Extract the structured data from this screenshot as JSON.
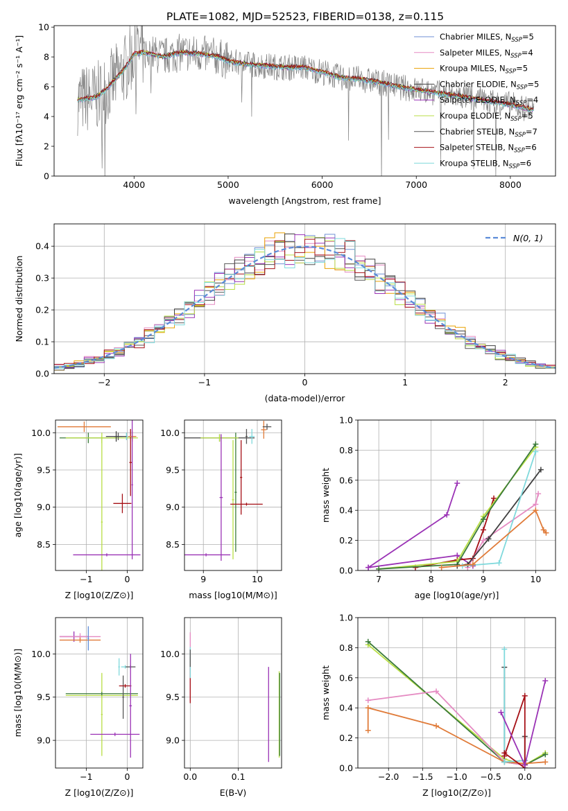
{
  "figure": {
    "title": "PLATE=1082, MJD=52523, FIBERID=0138, z=0.115"
  },
  "chart_data": [
    {
      "id": "spectrum",
      "type": "line",
      "title": "PLATE=1082, MJD=52523, FIBERID=0138, z=0.115",
      "xlabel": "wavelength [Angstrom, rest frame]",
      "ylabel": "Flux [fλ10⁻¹⁷ erg cm⁻² s⁻¹ A⁻¹]",
      "xlim": [
        3150,
        8480
      ],
      "ylim": [
        0,
        10.1
      ],
      "xticks": [
        4000,
        5000,
        6000,
        7000,
        8000
      ],
      "yticks": [
        0,
        2,
        4,
        6,
        8,
        10
      ],
      "grid": false,
      "legend_position": "top-right",
      "data_color": "#808080",
      "data_curve": {
        "x": [
          3400,
          3500,
          3600,
          3700,
          3800,
          3900,
          4000,
          4100,
          4200,
          4300,
          4500,
          4700,
          4900,
          5000,
          5200,
          5400,
          5600,
          5800,
          6000,
          6200,
          6400,
          6600,
          6800,
          7000,
          7200,
          7400,
          7600,
          7800,
          8000,
          8200
        ],
        "y": [
          5.1,
          5.2,
          5.3,
          5.8,
          6.5,
          7.2,
          8.2,
          8.3,
          8.2,
          8.0,
          8.3,
          8.2,
          8.0,
          7.7,
          7.5,
          7.4,
          7.3,
          7.3,
          7.0,
          6.6,
          6.5,
          6.3,
          6.0,
          5.8,
          5.6,
          5.4,
          5.2,
          5.0,
          4.8,
          4.5
        ]
      },
      "series": [
        {
          "name": "Chabrier MILES, N_SSP=5",
          "color": "#6f8fd4",
          "offset": 0.0
        },
        {
          "name": "Salpeter MILES, N_SSP=4",
          "color": "#e58ac2",
          "offset": 0.05
        },
        {
          "name": "Kroupa MILES, N_SSP=5",
          "color": "#e9a100",
          "offset": -0.03
        },
        {
          "name": "Chabrier ELODIE, N_SSP=5",
          "color": "#3f3f3f",
          "offset": 0.08
        },
        {
          "name": "Salpeter ELODIE, N_SSP=4",
          "color": "#9a32b5",
          "offset": -0.06
        },
        {
          "name": "Kroupa ELODIE, N_SSP=5",
          "color": "#b8de44",
          "offset": 0.03
        },
        {
          "name": "Chabrier STELIB, N_SSP=7",
          "color": "#555555",
          "offset": -0.02
        },
        {
          "name": "Salpeter STELIB, N_SSP=6",
          "color": "#a50f15",
          "offset": 0.06
        },
        {
          "name": "Kroupa STELIB, N_SSP=6",
          "color": "#7fd9dc",
          "offset": -0.08
        }
      ],
      "legend_labels": [
        {
          "prefix": "Chabrier MILES, N",
          "sub": "SSP",
          "suffix": "=5"
        },
        {
          "prefix": "Salpeter MILES, N",
          "sub": "SSP",
          "suffix": "=4"
        },
        {
          "prefix": "Kroupa MILES, N",
          "sub": "SSP",
          "suffix": "=5"
        },
        {
          "prefix": "Chabrier ELODIE, N",
          "sub": "SSP",
          "suffix": "=5"
        },
        {
          "prefix": "Salpeter ELODIE, N",
          "sub": "SSP",
          "suffix": "=4"
        },
        {
          "prefix": "Kroupa ELODIE, N",
          "sub": "SSP",
          "suffix": "=5"
        },
        {
          "prefix": "Chabrier STELIB, N",
          "sub": "SSP",
          "suffix": "=7"
        },
        {
          "prefix": "Salpeter STELIB, N",
          "sub": "SSP",
          "suffix": "=6"
        },
        {
          "prefix": "Kroupa STELIB, N",
          "sub": "SSP",
          "suffix": "=6"
        }
      ]
    },
    {
      "id": "residuals",
      "type": "line",
      "xlabel": "(data-model)/error",
      "ylabel": "Normed distribution",
      "xlim": [
        -2.5,
        2.5
      ],
      "ylim": [
        0,
        0.47
      ],
      "xticks": [
        -2,
        -1,
        0,
        1,
        2
      ],
      "yticks": [
        0.0,
        0.1,
        0.2,
        0.3,
        0.4
      ],
      "grid": true,
      "legend_position": "top-right",
      "legend_label": "N(0, 1)",
      "gaussian_color": "#5b8bd8",
      "histogram_bin_width": 0.1,
      "histogram_colors": [
        "#6f8fd4",
        "#e58ac2",
        "#e9a100",
        "#3f3f3f",
        "#9a32b5",
        "#b8de44",
        "#555555",
        "#a50f15",
        "#7fd9dc"
      ]
    },
    {
      "id": "age-vs-Z",
      "type": "scatter",
      "xlabel": "Z [log10(Z/Z⊙)]",
      "ylabel": "age [log10(age/yr)]",
      "xlim": [
        -1.75,
        0.38
      ],
      "ylim": [
        8.15,
        10.17
      ],
      "xticks": [
        -1,
        0
      ],
      "yticks": [
        8.5,
        9.0,
        9.5,
        10.0
      ],
      "grid": true,
      "points": [
        {
          "x": -1.05,
          "xerr": 0.65,
          "y": 10.08,
          "yerr": 0.07,
          "color": "#e07b39"
        },
        {
          "x": -0.95,
          "xerr": 0.7,
          "y": 9.93,
          "yerr": 0.07,
          "color": "#3a7a3a"
        },
        {
          "x": -0.62,
          "xerr": 0.88,
          "y": 9.93,
          "yerr": 0.07,
          "color": "#b8de44"
        },
        {
          "x": -0.62,
          "xerr": 0.02,
          "y": 8.8,
          "yerr": 1.15,
          "color": "#b8de44"
        },
        {
          "x": -0.22,
          "xerr": 0.1,
          "y": 9.95,
          "yerr": 0.05,
          "color": "#555555"
        },
        {
          "x": -0.12,
          "xerr": 0.22,
          "y": 9.05,
          "yerr": 0.13,
          "color": "#a50f15"
        },
        {
          "x": -0.02,
          "xerr": 0.22,
          "y": 9.95,
          "yerr": 0.05,
          "color": "#7fd9dc"
        },
        {
          "x": 0.08,
          "xerr": 0.03,
          "y": 9.6,
          "yerr": 0.45,
          "color": "#a50f15"
        },
        {
          "x": -0.27,
          "xerr": 0.25,
          "y": 9.95,
          "yerr": 0.07,
          "color": "#3f3f3f"
        },
        {
          "x": 0.12,
          "xerr": 0.1,
          "y": 9.95,
          "yerr": 0.07,
          "color": "#e07b39"
        },
        {
          "x": 0.12,
          "xerr": 0.02,
          "y": 9.3,
          "yerr": 1.0,
          "color": "#9a32b5"
        },
        {
          "x": -0.5,
          "xerr": 0.82,
          "y": 8.36,
          "yerr": 0.02,
          "color": "#9a32b5"
        }
      ]
    },
    {
      "id": "age-vs-mass",
      "type": "scatter",
      "xlabel": "mass [log10(M/M⊙)]",
      "ylabel": "",
      "xlim": [
        8.65,
        10.45
      ],
      "ylim": [
        8.15,
        10.17
      ],
      "xticks": [
        9,
        10
      ],
      "yticks": [
        8.5,
        9.0,
        9.5,
        10.0
      ],
      "grid": true,
      "points": [
        {
          "x": 9.3,
          "xerr": 0.65,
          "y": 9.93,
          "yerr": 0.05,
          "color": "#3f3f3f"
        },
        {
          "x": 9.55,
          "xerr": 0.02,
          "y": 9.1,
          "yerr": 0.8,
          "color": "#b8de44"
        },
        {
          "x": 9.6,
          "xerr": 0.02,
          "y": 9.2,
          "yerr": 0.8,
          "color": "#3a7a3a"
        },
        {
          "x": 9.3,
          "xerr": 0.35,
          "y": 9.93,
          "yerr": 0.05,
          "color": "#b8de44"
        },
        {
          "x": 9.33,
          "xerr": 0.03,
          "y": 9.13,
          "yerr": 0.85,
          "color": "#9a32b5"
        },
        {
          "x": 9.05,
          "xerr": 0.45,
          "y": 8.36,
          "yerr": 0.02,
          "color": "#9a32b5"
        },
        {
          "x": 9.8,
          "xerr": 0.02,
          "y": 9.95,
          "yerr": 0.1,
          "color": "#555555"
        },
        {
          "x": 9.8,
          "xerr": 0.3,
          "y": 9.04,
          "yerr": 0.02,
          "color": "#a50f15"
        },
        {
          "x": 9.7,
          "xerr": 0.02,
          "y": 9.4,
          "yerr": 0.5,
          "color": "#a50f15"
        },
        {
          "x": 9.9,
          "xerr": 0.05,
          "y": 9.95,
          "yerr": 0.1,
          "color": "#7fd9dc"
        },
        {
          "x": 10.12,
          "xerr": 0.05,
          "y": 10.04,
          "yerr": 0.12,
          "color": "#e07b39"
        },
        {
          "x": 10.18,
          "xerr": 0.08,
          "y": 10.08,
          "yerr": 0.04,
          "color": "#555555"
        }
      ]
    },
    {
      "id": "massweight-vs-age",
      "type": "line",
      "xlabel": "age [log10(age/yr)]",
      "ylabel": "mass weight",
      "xlim": [
        6.6,
        10.38
      ],
      "ylim": [
        0,
        1.0
      ],
      "xticks": [
        7,
        8,
        9,
        10
      ],
      "yticks": [
        0.0,
        0.2,
        0.4,
        0.6,
        0.8,
        1.0
      ],
      "grid": true,
      "series": [
        {
          "color": "#9a32b5",
          "x": [
            6.8,
            8.3,
            8.5
          ],
          "y": [
            0.02,
            0.37,
            0.58
          ]
        },
        {
          "color": "#9a32b5",
          "x": [
            6.8,
            8.5,
            8.8
          ],
          "y": [
            0.02,
            0.1,
            0.03
          ]
        },
        {
          "color": "#a50f15",
          "x": [
            7.7,
            8.5,
            8.8,
            9.0,
            9.2
          ],
          "y": [
            0.02,
            0.07,
            0.08,
            0.27,
            0.48
          ]
        },
        {
          "color": "#b8de44",
          "x": [
            7.0,
            8.5,
            9.0,
            10.0
          ],
          "y": [
            0.01,
            0.06,
            0.36,
            0.82
          ]
        },
        {
          "color": "#3a7a3a",
          "x": [
            7.0,
            8.5,
            9.0,
            10.0
          ],
          "y": [
            0.01,
            0.04,
            0.34,
            0.84
          ]
        },
        {
          "color": "#e58ac2",
          "x": [
            8.7,
            9.0,
            10.0,
            10.05
          ],
          "y": [
            0.02,
            0.2,
            0.44,
            0.51
          ]
        },
        {
          "color": "#3f3f3f",
          "x": [
            8.5,
            8.7,
            9.1,
            10.1
          ],
          "y": [
            0.03,
            0.04,
            0.21,
            0.67
          ]
        },
        {
          "color": "#7fd9dc",
          "x": [
            8.6,
            9.3,
            10.0
          ],
          "y": [
            0.03,
            0.05,
            0.79
          ]
        },
        {
          "color": "#e07b39",
          "x": [
            8.2,
            8.8,
            10.0,
            10.15,
            10.2
          ],
          "y": [
            0.02,
            0.04,
            0.4,
            0.27,
            0.25
          ]
        }
      ]
    },
    {
      "id": "mass-vs-Z",
      "type": "scatter",
      "xlabel": "Z [log10(Z/Z⊙)]",
      "ylabel": "mass [log10(M/M⊙)]",
      "xlim": [
        -1.75,
        0.38
      ],
      "ylim": [
        8.68,
        10.42
      ],
      "xticks": [
        -1,
        0
      ],
      "yticks": [
        9.0,
        9.5,
        10.0
      ],
      "grid": true,
      "points": [
        {
          "x": -1.3,
          "xerr": 0.35,
          "y": 10.2,
          "yerr": 0.06,
          "color": "#9a32b5"
        },
        {
          "x": -1.15,
          "xerr": 0.5,
          "y": 10.2,
          "yerr": 0.04,
          "color": "#e58ac2"
        },
        {
          "x": -1.15,
          "xerr": 0.5,
          "y": 10.16,
          "yerr": 0.03,
          "color": "#e07b39"
        },
        {
          "x": -0.95,
          "xerr": 0.02,
          "y": 10.18,
          "yerr": 0.14,
          "color": "#5b8bd8"
        },
        {
          "x": -0.62,
          "xerr": 0.02,
          "y": 9.3,
          "yerr": 0.48,
          "color": "#b8de44"
        },
        {
          "x": -0.62,
          "xerr": 0.88,
          "y": 9.52,
          "yerr": 0.02,
          "color": "#b8de44"
        },
        {
          "x": -0.62,
          "xerr": 0.88,
          "y": 9.54,
          "yerr": 0.02,
          "color": "#3a7a3a"
        },
        {
          "x": -0.2,
          "xerr": 0.02,
          "y": 9.85,
          "yerr": 0.1,
          "color": "#7fd9dc"
        },
        {
          "x": -0.1,
          "xerr": 0.02,
          "y": 9.5,
          "yerr": 0.25,
          "color": "#555555"
        },
        {
          "x": -0.05,
          "xerr": 0.15,
          "y": 9.63,
          "yerr": 0.02,
          "color": "#a50f15"
        },
        {
          "x": -0.05,
          "xerr": 0.1,
          "y": 9.85,
          "yerr": 0.02,
          "color": "#7fd9dc"
        },
        {
          "x": 0.08,
          "xerr": 0.12,
          "y": 9.85,
          "yerr": 0.02,
          "color": "#555555"
        },
        {
          "x": 0.08,
          "xerr": 0.03,
          "y": 9.4,
          "yerr": 0.6,
          "color": "#9a32b5"
        },
        {
          "x": -0.3,
          "xerr": 0.6,
          "y": 9.07,
          "yerr": 0.02,
          "color": "#9a32b5"
        }
      ]
    },
    {
      "id": "mass-vs-ebv",
      "type": "scatter",
      "xlabel": "E(B-V)",
      "ylabel": "",
      "xlim": [
        -0.012,
        0.19
      ],
      "ylim": [
        8.68,
        10.42
      ],
      "xticks": [
        0.0,
        0.1
      ],
      "yticks": [
        9.0,
        9.5,
        10.0
      ],
      "grid": true,
      "points": [
        {
          "x": 0.0,
          "xerr": 0.0,
          "y": 9.85,
          "yerr": 0.4,
          "color": "#e58ac2"
        },
        {
          "x": 0.0,
          "xerr": 0.0,
          "y": 9.7,
          "yerr": 0.27,
          "color": "#a50f15"
        },
        {
          "x": 0.0,
          "xerr": 0.0,
          "y": 9.9,
          "yerr": 0.18,
          "color": "#7fd9dc"
        },
        {
          "x": 0.0,
          "xerr": 0.0,
          "y": 9.95,
          "yerr": 0.1,
          "color": "#555555"
        },
        {
          "x": 0.163,
          "xerr": 0.0,
          "y": 9.3,
          "yerr": 0.55,
          "color": "#9a32b5"
        },
        {
          "x": 0.185,
          "xerr": 0.0,
          "y": 9.3,
          "yerr": 0.5,
          "color": "#b8de44"
        },
        {
          "x": 0.186,
          "xerr": 0.0,
          "y": 9.3,
          "yerr": 0.48,
          "color": "#3a7a3a"
        }
      ]
    },
    {
      "id": "massweight-vs-Z",
      "type": "line",
      "xlabel": "Z [log10(Z/Z⊙)]",
      "ylabel": "mass weight",
      "xlim": [
        -2.45,
        0.45
      ],
      "ylim": [
        0,
        1.0
      ],
      "xticks": [
        -2.0,
        -1.5,
        -1.0,
        -0.5,
        0.0
      ],
      "yticks": [
        0.0,
        0.2,
        0.4,
        0.6,
        0.8,
        1.0
      ],
      "grid": true,
      "series": [
        {
          "color": "#b8de44",
          "x": [
            -2.3,
            -0.3,
            0.0,
            0.3
          ],
          "y": [
            0.82,
            0.06,
            0.02,
            0.1
          ]
        },
        {
          "color": "#3a7a3a",
          "x": [
            -2.3,
            -0.3,
            0.0,
            0.3
          ],
          "y": [
            0.84,
            0.04,
            0.02,
            0.09
          ]
        },
        {
          "color": "#e58ac2",
          "x": [
            -2.3,
            -1.3,
            -0.3,
            0.0
          ],
          "y": [
            0.45,
            0.51,
            0.04,
            0.02
          ]
        },
        {
          "color": "#e07b39",
          "x": [
            -2.3,
            -2.3,
            -1.3,
            -0.3,
            0.0,
            0.3
          ],
          "y": [
            0.25,
            0.4,
            0.28,
            0.04,
            0.03,
            0.04
          ]
        },
        {
          "color": "#3f3f3f",
          "x": [
            -0.3,
            -0.3,
            0.0,
            0.0
          ],
          "y": [
            0.67,
            0.04,
            0.05,
            0.21
          ]
        },
        {
          "color": "#7fd9dc",
          "x": [
            -0.3,
            -0.3,
            0.0
          ],
          "y": [
            0.79,
            0.04,
            0.05
          ]
        },
        {
          "color": "#a50f15",
          "x": [
            -0.3,
            0.0,
            0.0,
            -0.3
          ],
          "y": [
            0.08,
            0.48,
            0.0,
            0.1
          ]
        },
        {
          "color": "#9a32b5",
          "x": [
            -0.35,
            0.0,
            0.3
          ],
          "y": [
            0.37,
            0.02,
            0.58
          ]
        }
      ]
    }
  ]
}
